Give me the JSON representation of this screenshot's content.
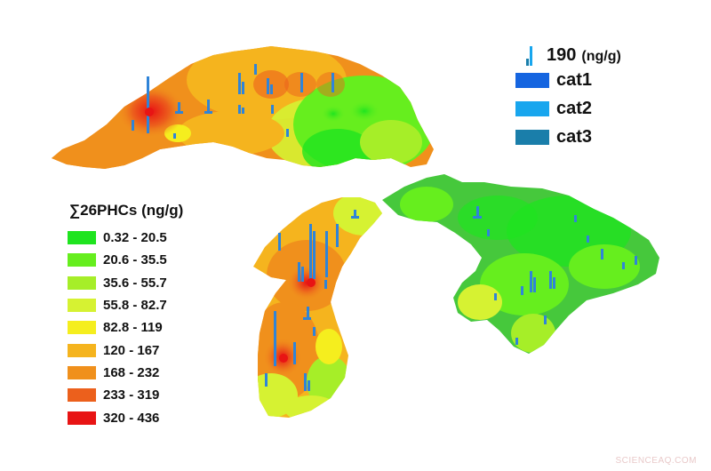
{
  "map": {
    "lake_base_color": "#46c83c",
    "site_bar_color": "#2f84d8"
  },
  "legend": {
    "title": "∑26PHCs (ng/g)",
    "items": [
      {
        "label": "0.32 - 20.5",
        "color": "#1fe41f"
      },
      {
        "label": "20.6 - 35.5",
        "color": "#66ee1e"
      },
      {
        "label": "35.6 - 55.7",
        "color": "#a6ee28"
      },
      {
        "label": "55.8 - 82.7",
        "color": "#d6f232"
      },
      {
        "label": "82.8 - 119",
        "color": "#f5ee1e"
      },
      {
        "label": "120 - 167",
        "color": "#f5b41e"
      },
      {
        "label": "168 - 232",
        "color": "#f0901c"
      },
      {
        "label": "233 - 319",
        "color": "#ec601c"
      },
      {
        "label": "320 - 436",
        "color": "#e81414"
      }
    ]
  },
  "key": {
    "reference_value": "190",
    "reference_unit": "(ng/g)",
    "categories": [
      {
        "label": "cat1",
        "color": "#1565e0"
      },
      {
        "label": "cat2",
        "color": "#18a6ee"
      },
      {
        "label": "cat3",
        "color": "#1a7eaa"
      }
    ]
  },
  "watermark": "SCIENCEAQ.COM"
}
